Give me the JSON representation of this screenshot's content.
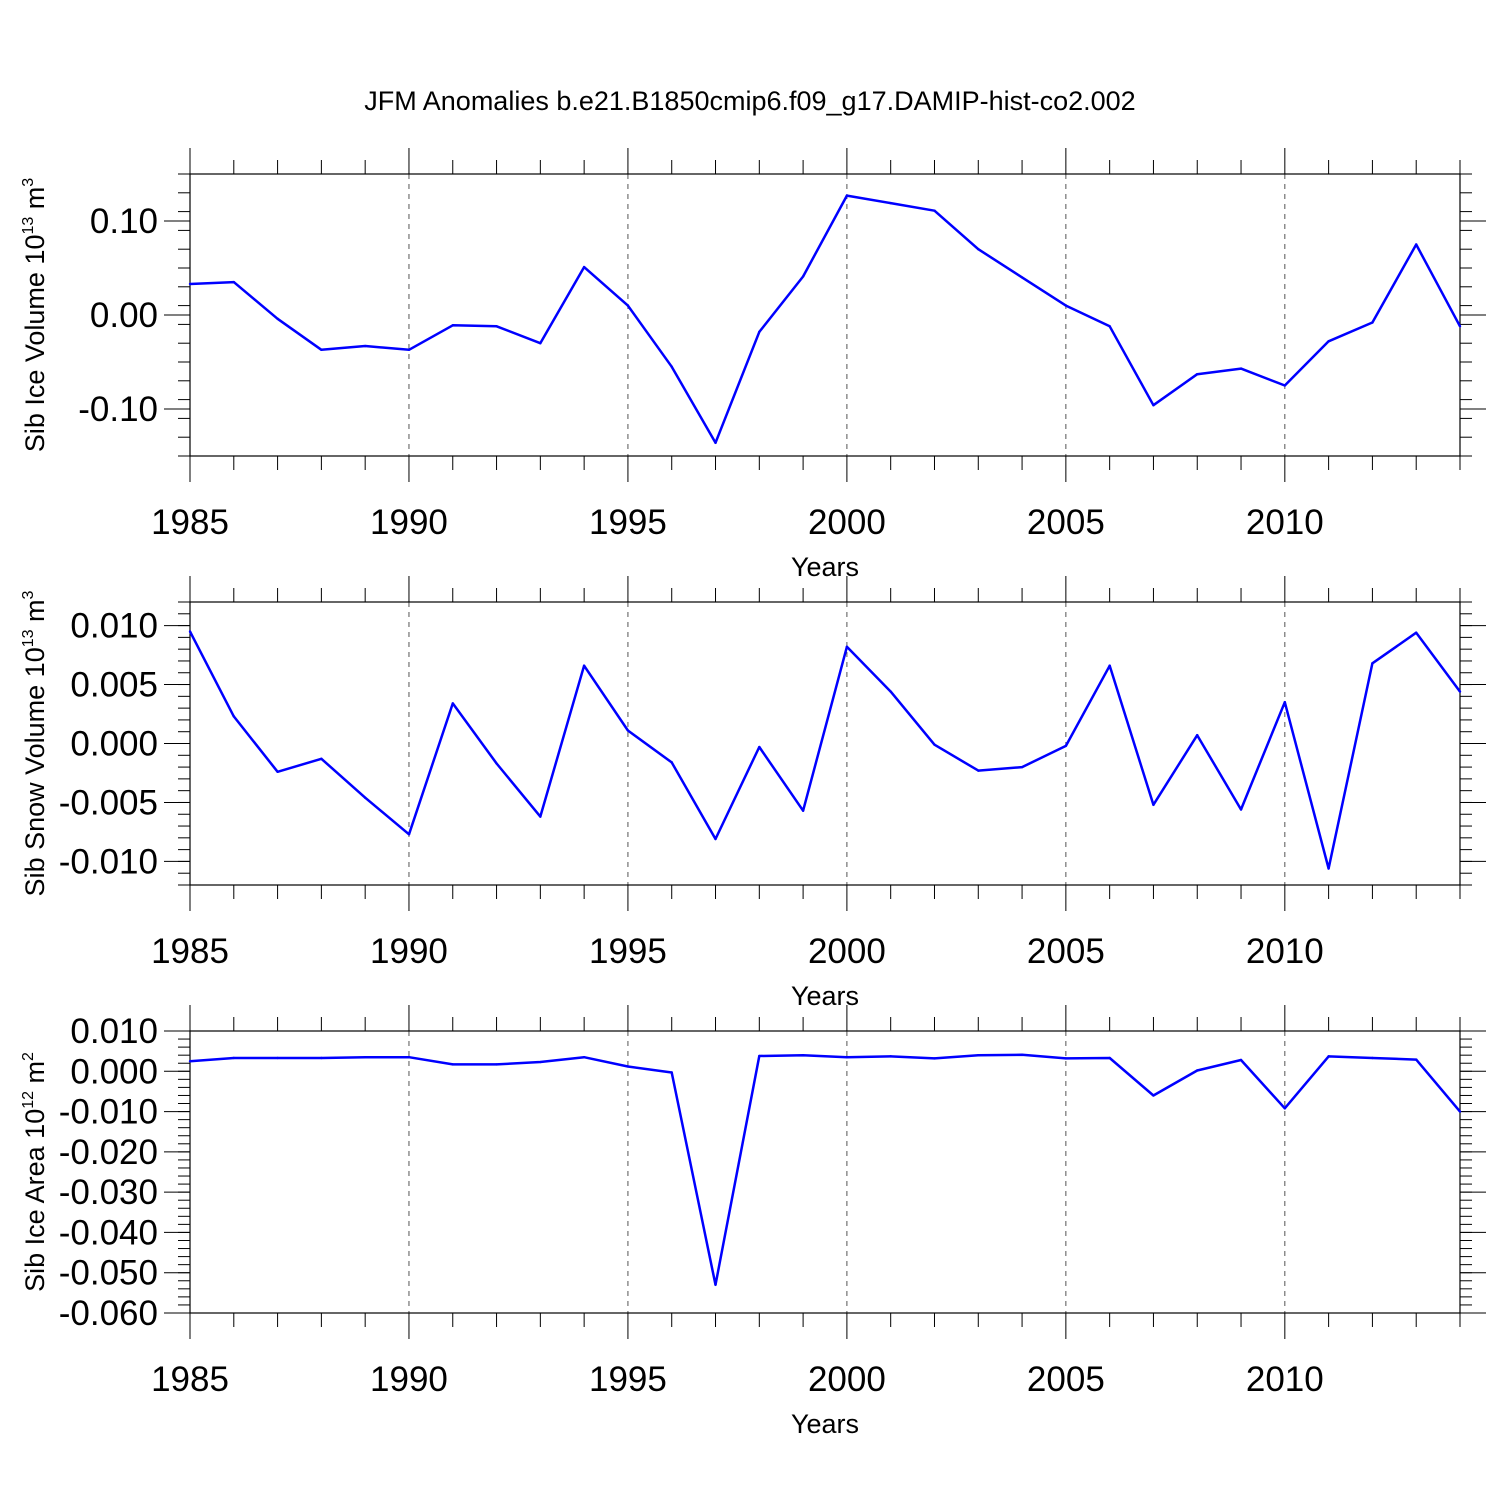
{
  "title": "JFM Anomalies b.e21.B1850cmip6.f09_g17.DAMIP-hist-co2.002",
  "chart_data": [
    {
      "type": "line",
      "id": "ice-volume",
      "ylabel_main": "Sib Ice Volume 10",
      "ylabel_exp": "13",
      "ylabel_unit": "m",
      "ylabel_unit_exp": "3",
      "xlabel": "Years",
      "xlim": [
        1985,
        2014
      ],
      "ylim": [
        -0.15,
        0.15
      ],
      "xticks": [
        1985,
        1990,
        1995,
        2000,
        2005,
        2010
      ],
      "xtick_labels": [
        "1985",
        "1990",
        "1995",
        "2000",
        "2005",
        "2010"
      ],
      "yticks": [
        -0.1,
        0.0,
        0.1
      ],
      "ytick_labels": [
        "-0.10",
        "0.00",
        "0.10"
      ],
      "yminor_step": 0.02,
      "grid_x": true,
      "color": "#0000ff",
      "x": [
        1985,
        1986,
        1987,
        1988,
        1989,
        1990,
        1991,
        1992,
        1993,
        1994,
        1995,
        1996,
        1997,
        1998,
        1999,
        2000,
        2001,
        2002,
        2003,
        2004,
        2005,
        2006,
        2007,
        2008,
        2009,
        2010,
        2011,
        2012,
        2013,
        2014
      ],
      "y": [
        0.033,
        0.035,
        -0.004,
        -0.037,
        -0.033,
        -0.037,
        -0.011,
        -0.012,
        -0.03,
        0.051,
        0.01,
        -0.055,
        -0.136,
        -0.018,
        0.041,
        0.127,
        0.119,
        0.111,
        0.07,
        0.04,
        0.01,
        -0.012,
        -0.096,
        -0.063,
        -0.057,
        -0.075,
        -0.028,
        -0.008,
        0.075,
        -0.012
      ]
    },
    {
      "type": "line",
      "id": "snow-volume",
      "ylabel_main": "Sib Snow Volume 10",
      "ylabel_exp": "13",
      "ylabel_unit": "m",
      "ylabel_unit_exp": "3",
      "xlabel": "Years",
      "xlim": [
        1985,
        2014
      ],
      "ylim": [
        -0.012,
        0.012
      ],
      "xticks": [
        1985,
        1990,
        1995,
        2000,
        2005,
        2010
      ],
      "xtick_labels": [
        "1985",
        "1990",
        "1995",
        "2000",
        "2005",
        "2010"
      ],
      "yticks": [
        -0.01,
        -0.005,
        0.0,
        0.005,
        0.01
      ],
      "ytick_labels": [
        "-0.010",
        "-0.005",
        "0.000",
        "0.005",
        "0.010"
      ],
      "yminor_step": 0.001,
      "grid_x": true,
      "color": "#0000ff",
      "x": [
        1985,
        1986,
        1987,
        1988,
        1989,
        1990,
        1991,
        1992,
        1993,
        1994,
        1995,
        1996,
        1997,
        1998,
        1999,
        2000,
        2001,
        2002,
        2003,
        2004,
        2005,
        2006,
        2007,
        2008,
        2009,
        2010,
        2011,
        2012,
        2013,
        2014
      ],
      "y": [
        0.0095,
        0.0023,
        -0.0024,
        -0.0013,
        -0.0046,
        -0.0077,
        0.0034,
        -0.0017,
        -0.0062,
        0.0066,
        0.0011,
        -0.0016,
        -0.0081,
        -0.0003,
        -0.0057,
        0.0082,
        0.0044,
        -0.0001,
        -0.0023,
        -0.002,
        -0.0002,
        0.0066,
        -0.0052,
        0.0007,
        -0.0056,
        0.0035,
        -0.0106,
        0.0068,
        0.0094,
        0.0044
      ]
    },
    {
      "type": "line",
      "id": "ice-area",
      "ylabel_main": "Sib Ice Area 10",
      "ylabel_exp": "12",
      "ylabel_unit": "m",
      "ylabel_unit_exp": "2",
      "xlabel": "Years",
      "xlim": [
        1985,
        2014
      ],
      "ylim": [
        -0.06,
        0.01
      ],
      "xticks": [
        1985,
        1990,
        1995,
        2000,
        2005,
        2010
      ],
      "xtick_labels": [
        "1985",
        "1990",
        "1995",
        "2000",
        "2005",
        "2010"
      ],
      "yticks": [
        -0.06,
        -0.05,
        -0.04,
        -0.03,
        -0.02,
        -0.01,
        0.0,
        0.01
      ],
      "ytick_labels": [
        "-0.060",
        "-0.050",
        "-0.040",
        "-0.030",
        "-0.020",
        "-0.010",
        "0.000",
        "0.010"
      ],
      "yminor_step": 0.002,
      "grid_x": true,
      "color": "#0000ff",
      "x": [
        1985,
        1986,
        1987,
        1988,
        1989,
        1990,
        1991,
        1992,
        1993,
        1994,
        1995,
        1996,
        1997,
        1998,
        1999,
        2000,
        2001,
        2002,
        2003,
        2004,
        2005,
        2006,
        2007,
        2008,
        2009,
        2010,
        2011,
        2012,
        2013,
        2014
      ],
      "y": [
        0.0025,
        0.0033,
        0.0033,
        0.0033,
        0.0035,
        0.0035,
        0.0017,
        0.0017,
        0.0023,
        0.0035,
        0.0012,
        -0.0003,
        -0.053,
        0.0038,
        0.004,
        0.0035,
        0.0037,
        0.0032,
        0.004,
        0.0041,
        0.0032,
        0.0033,
        -0.006,
        0.0002,
        0.0028,
        -0.0092,
        0.0037,
        0.0033,
        0.0029,
        -0.01
      ]
    }
  ]
}
